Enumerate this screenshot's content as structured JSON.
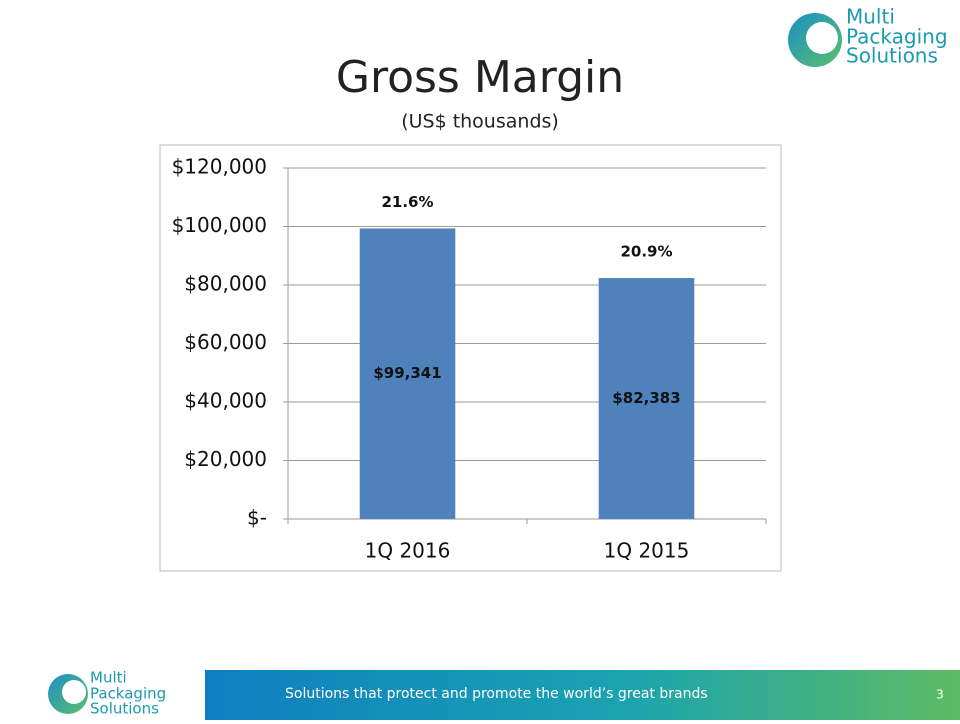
{
  "logo": {
    "lines": [
      "Multi",
      "Packaging",
      "Solutions"
    ]
  },
  "footer": {
    "tagline": "Solutions that protect and promote the world’s great brands",
    "page_number": "3"
  },
  "chart_data": {
    "type": "bar",
    "title": "Gross Margin",
    "subtitle": "(US$ thousands)",
    "categories": [
      "1Q 2016",
      "1Q 2015"
    ],
    "values": [
      99341,
      82383
    ],
    "value_labels": [
      "$99,341",
      "$82,383"
    ],
    "annotations": [
      "21.6%",
      "20.9%"
    ],
    "color": "#4f81bd",
    "ylim": [
      0,
      120000
    ],
    "yticks": [
      {
        "value": 0,
        "label": "$-"
      },
      {
        "value": 20000,
        "label": "$20,000"
      },
      {
        "value": 40000,
        "label": "$40,000"
      },
      {
        "value": 60000,
        "label": "$60,000"
      },
      {
        "value": 80000,
        "label": "$80,000"
      },
      {
        "value": 100000,
        "label": "$100,000"
      },
      {
        "value": 120000,
        "label": "$120,000"
      }
    ],
    "grid": true
  }
}
